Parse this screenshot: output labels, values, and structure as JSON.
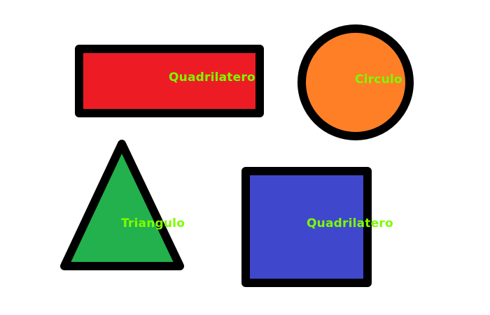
{
  "colors": {
    "background": "#ffffff",
    "outline": "#000000",
    "label": "#7cfc00",
    "rectangle_fill": "#ed1c24",
    "circle_fill": "#ff7f27",
    "triangle_fill": "#22b14c",
    "square_fill": "#3f48cc"
  },
  "shapes": {
    "rectangle": {
      "label": "Quadrilatero"
    },
    "circle": {
      "label": "Circulo"
    },
    "triangle": {
      "label": "Triangulo"
    },
    "square": {
      "label": "Quadrilatero"
    }
  }
}
